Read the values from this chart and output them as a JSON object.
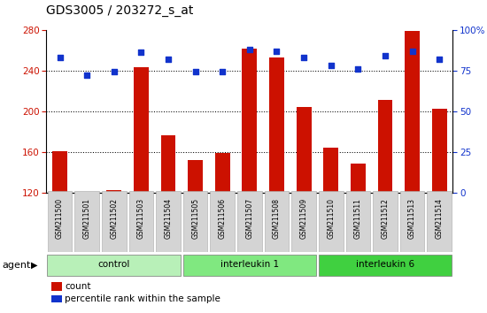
{
  "title": "GDS3005 / 203272_s_at",
  "samples": [
    "GSM211500",
    "GSM211501",
    "GSM211502",
    "GSM211503",
    "GSM211504",
    "GSM211505",
    "GSM211506",
    "GSM211507",
    "GSM211508",
    "GSM211509",
    "GSM211510",
    "GSM211511",
    "GSM211512",
    "GSM211513",
    "GSM211514"
  ],
  "counts": [
    161,
    119,
    122,
    243,
    176,
    152,
    159,
    261,
    253,
    204,
    164,
    148,
    211,
    279,
    202
  ],
  "percentiles": [
    83,
    72,
    74,
    86,
    82,
    74,
    74,
    88,
    87,
    83,
    78,
    76,
    84,
    87,
    82
  ],
  "groups": [
    {
      "label": "control",
      "start": 0,
      "end": 5,
      "color": "#b8f0b8"
    },
    {
      "label": "interleukin 1",
      "start": 5,
      "end": 10,
      "color": "#80e880"
    },
    {
      "label": "interleukin 6",
      "start": 10,
      "end": 15,
      "color": "#40d040"
    }
  ],
  "ylim_left": [
    120,
    280
  ],
  "ylim_right": [
    0,
    100
  ],
  "yticks_left": [
    120,
    160,
    200,
    240,
    280
  ],
  "yticks_right": [
    0,
    25,
    50,
    75,
    100
  ],
  "bar_color": "#cc1100",
  "dot_color": "#1133cc",
  "label_count": "count",
  "label_percentile": "percentile rank within the sample",
  "agent_label": "agent"
}
